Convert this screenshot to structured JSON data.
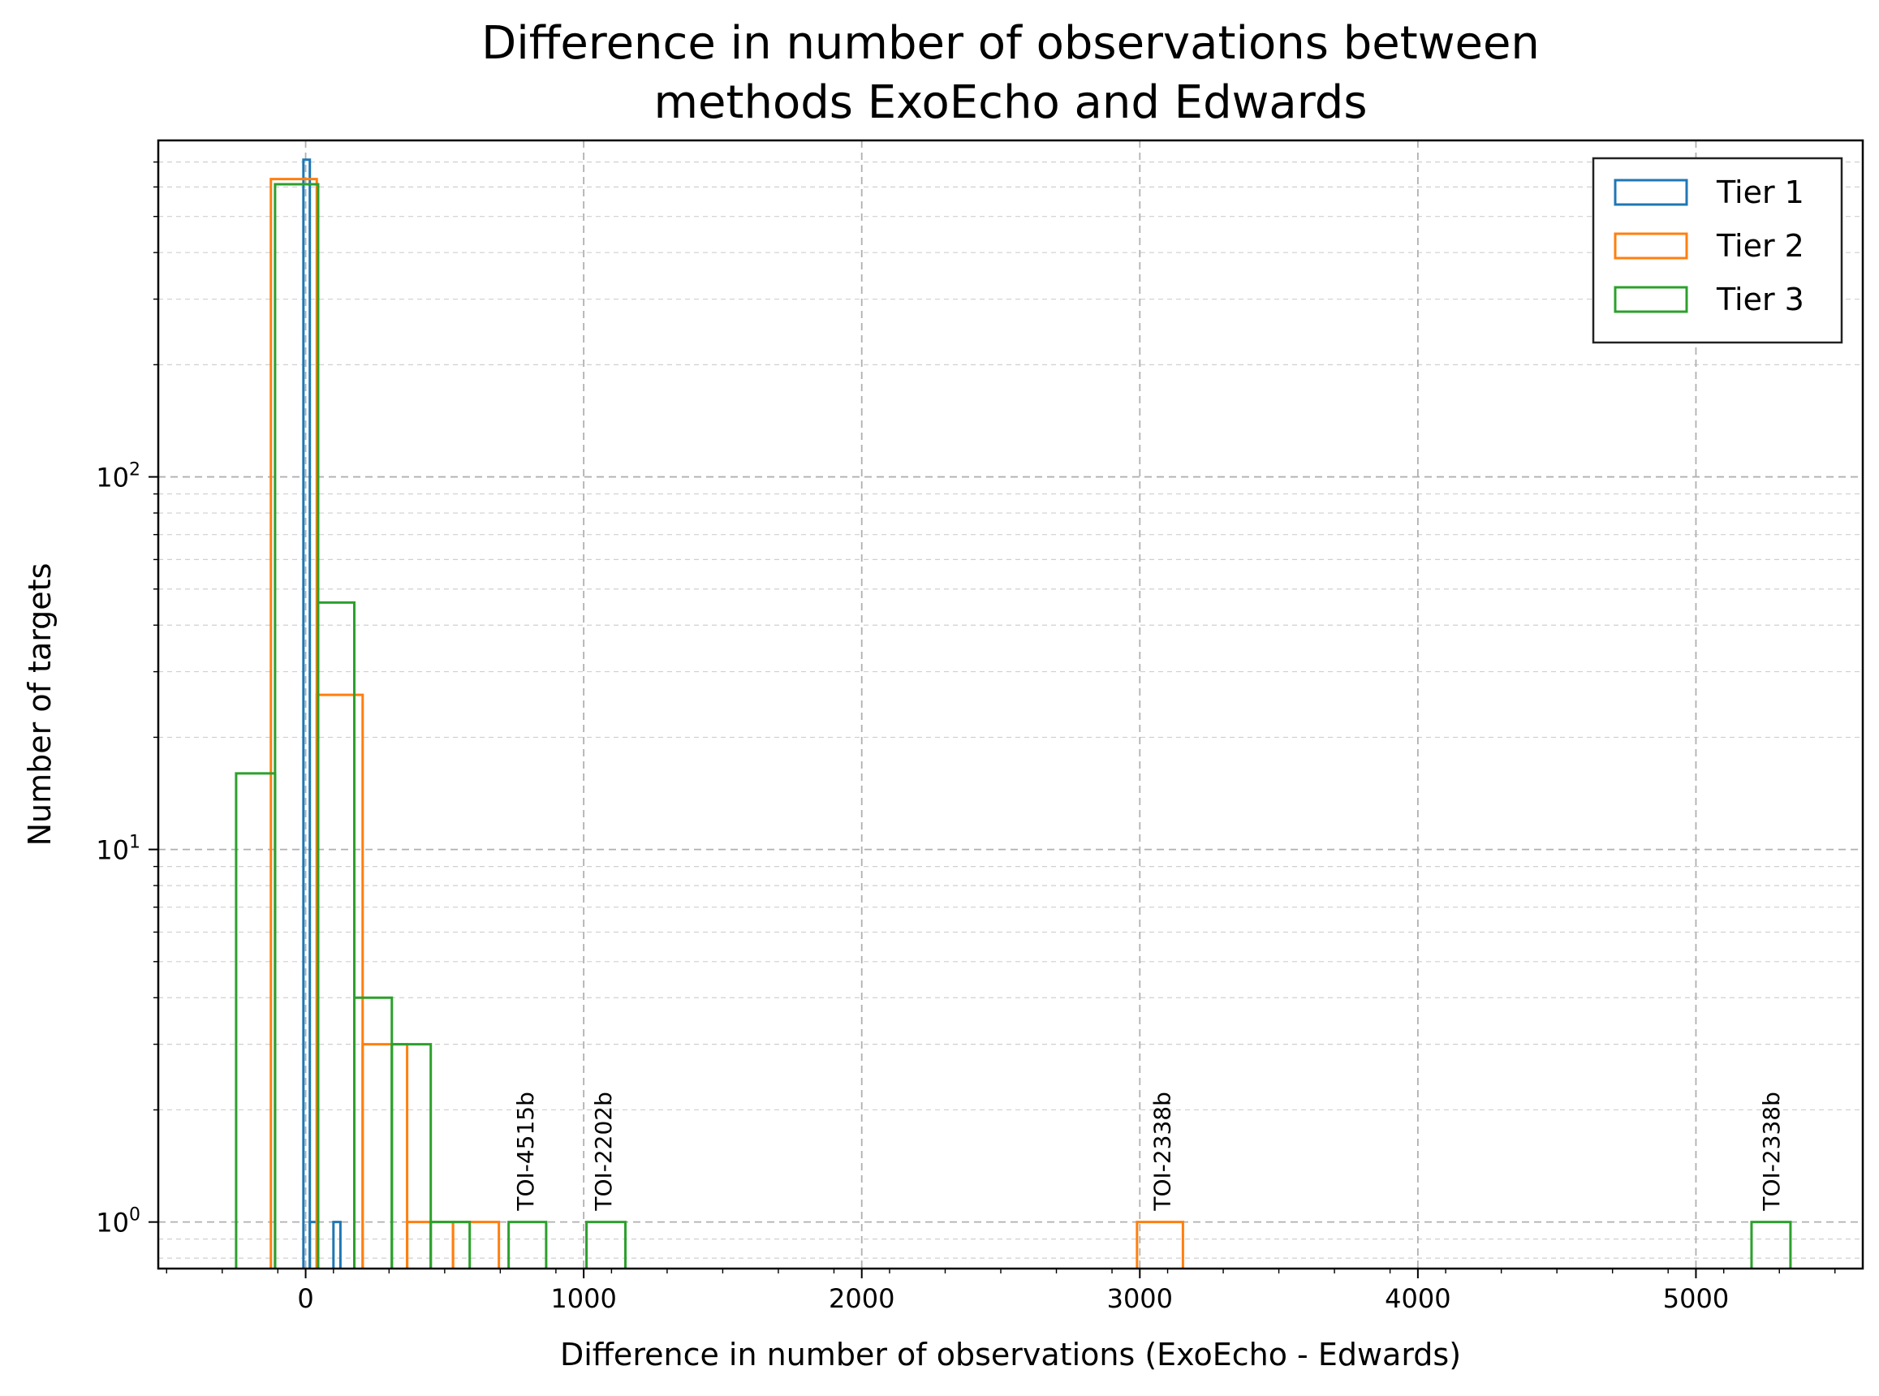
{
  "chart_data": {
    "type": "histogram",
    "title_line1": "Difference in number of observations between",
    "title_line2": "methods ExoEcho and Edwards",
    "xlabel": "Difference in number of observations (ExoEcho - Edwards)",
    "ylabel": "Number of targets",
    "xlim": [
      -530,
      5600
    ],
    "ylim": [
      0.75,
      800
    ],
    "yscale": "log",
    "grid": true,
    "legend_position": "top-right",
    "x_ticks": [
      0,
      1000,
      2000,
      3000,
      4000,
      5000
    ],
    "x_tick_labels": [
      "0",
      "1000",
      "2000",
      "3000",
      "4000",
      "5000"
    ],
    "y_ticks": [
      1,
      10,
      100
    ],
    "y_tick_labels": [
      {
        "base": "10",
        "exp": "0"
      },
      {
        "base": "10",
        "exp": "1"
      },
      {
        "base": "10",
        "exp": "2"
      }
    ],
    "series": [
      {
        "name": "Tier 1",
        "color": "#1f77b4",
        "bins": [
          [
            -8,
            15,
            710
          ],
          [
            15,
            40,
            1
          ],
          [
            100,
            125,
            1
          ]
        ]
      },
      {
        "name": "Tier 2",
        "color": "#ff7f0e",
        "bins": [
          [
            -125,
            40,
            630
          ],
          [
            40,
            205,
            26
          ],
          [
            205,
            365,
            3
          ],
          [
            365,
            530,
            1
          ],
          [
            530,
            695,
            1
          ],
          [
            2990,
            3155,
            1
          ]
        ]
      },
      {
        "name": "Tier 3",
        "color": "#2ca02c",
        "bins": [
          [
            -250,
            -110,
            16
          ],
          [
            -110,
            45,
            610
          ],
          [
            45,
            175,
            46
          ],
          [
            175,
            310,
            4
          ],
          [
            310,
            450,
            3
          ],
          [
            450,
            590,
            1
          ],
          [
            730,
            865,
            1
          ],
          [
            1010,
            1150,
            1
          ],
          [
            5200,
            5340,
            1
          ]
        ]
      }
    ],
    "annotations": [
      {
        "text": "TOI-4515b",
        "x": 790
      },
      {
        "text": "TOI-2202b",
        "x": 1070
      },
      {
        "text": "TOI-2338b",
        "x": 3080
      },
      {
        "text": "TOI-2338b",
        "x": 5270
      }
    ]
  }
}
